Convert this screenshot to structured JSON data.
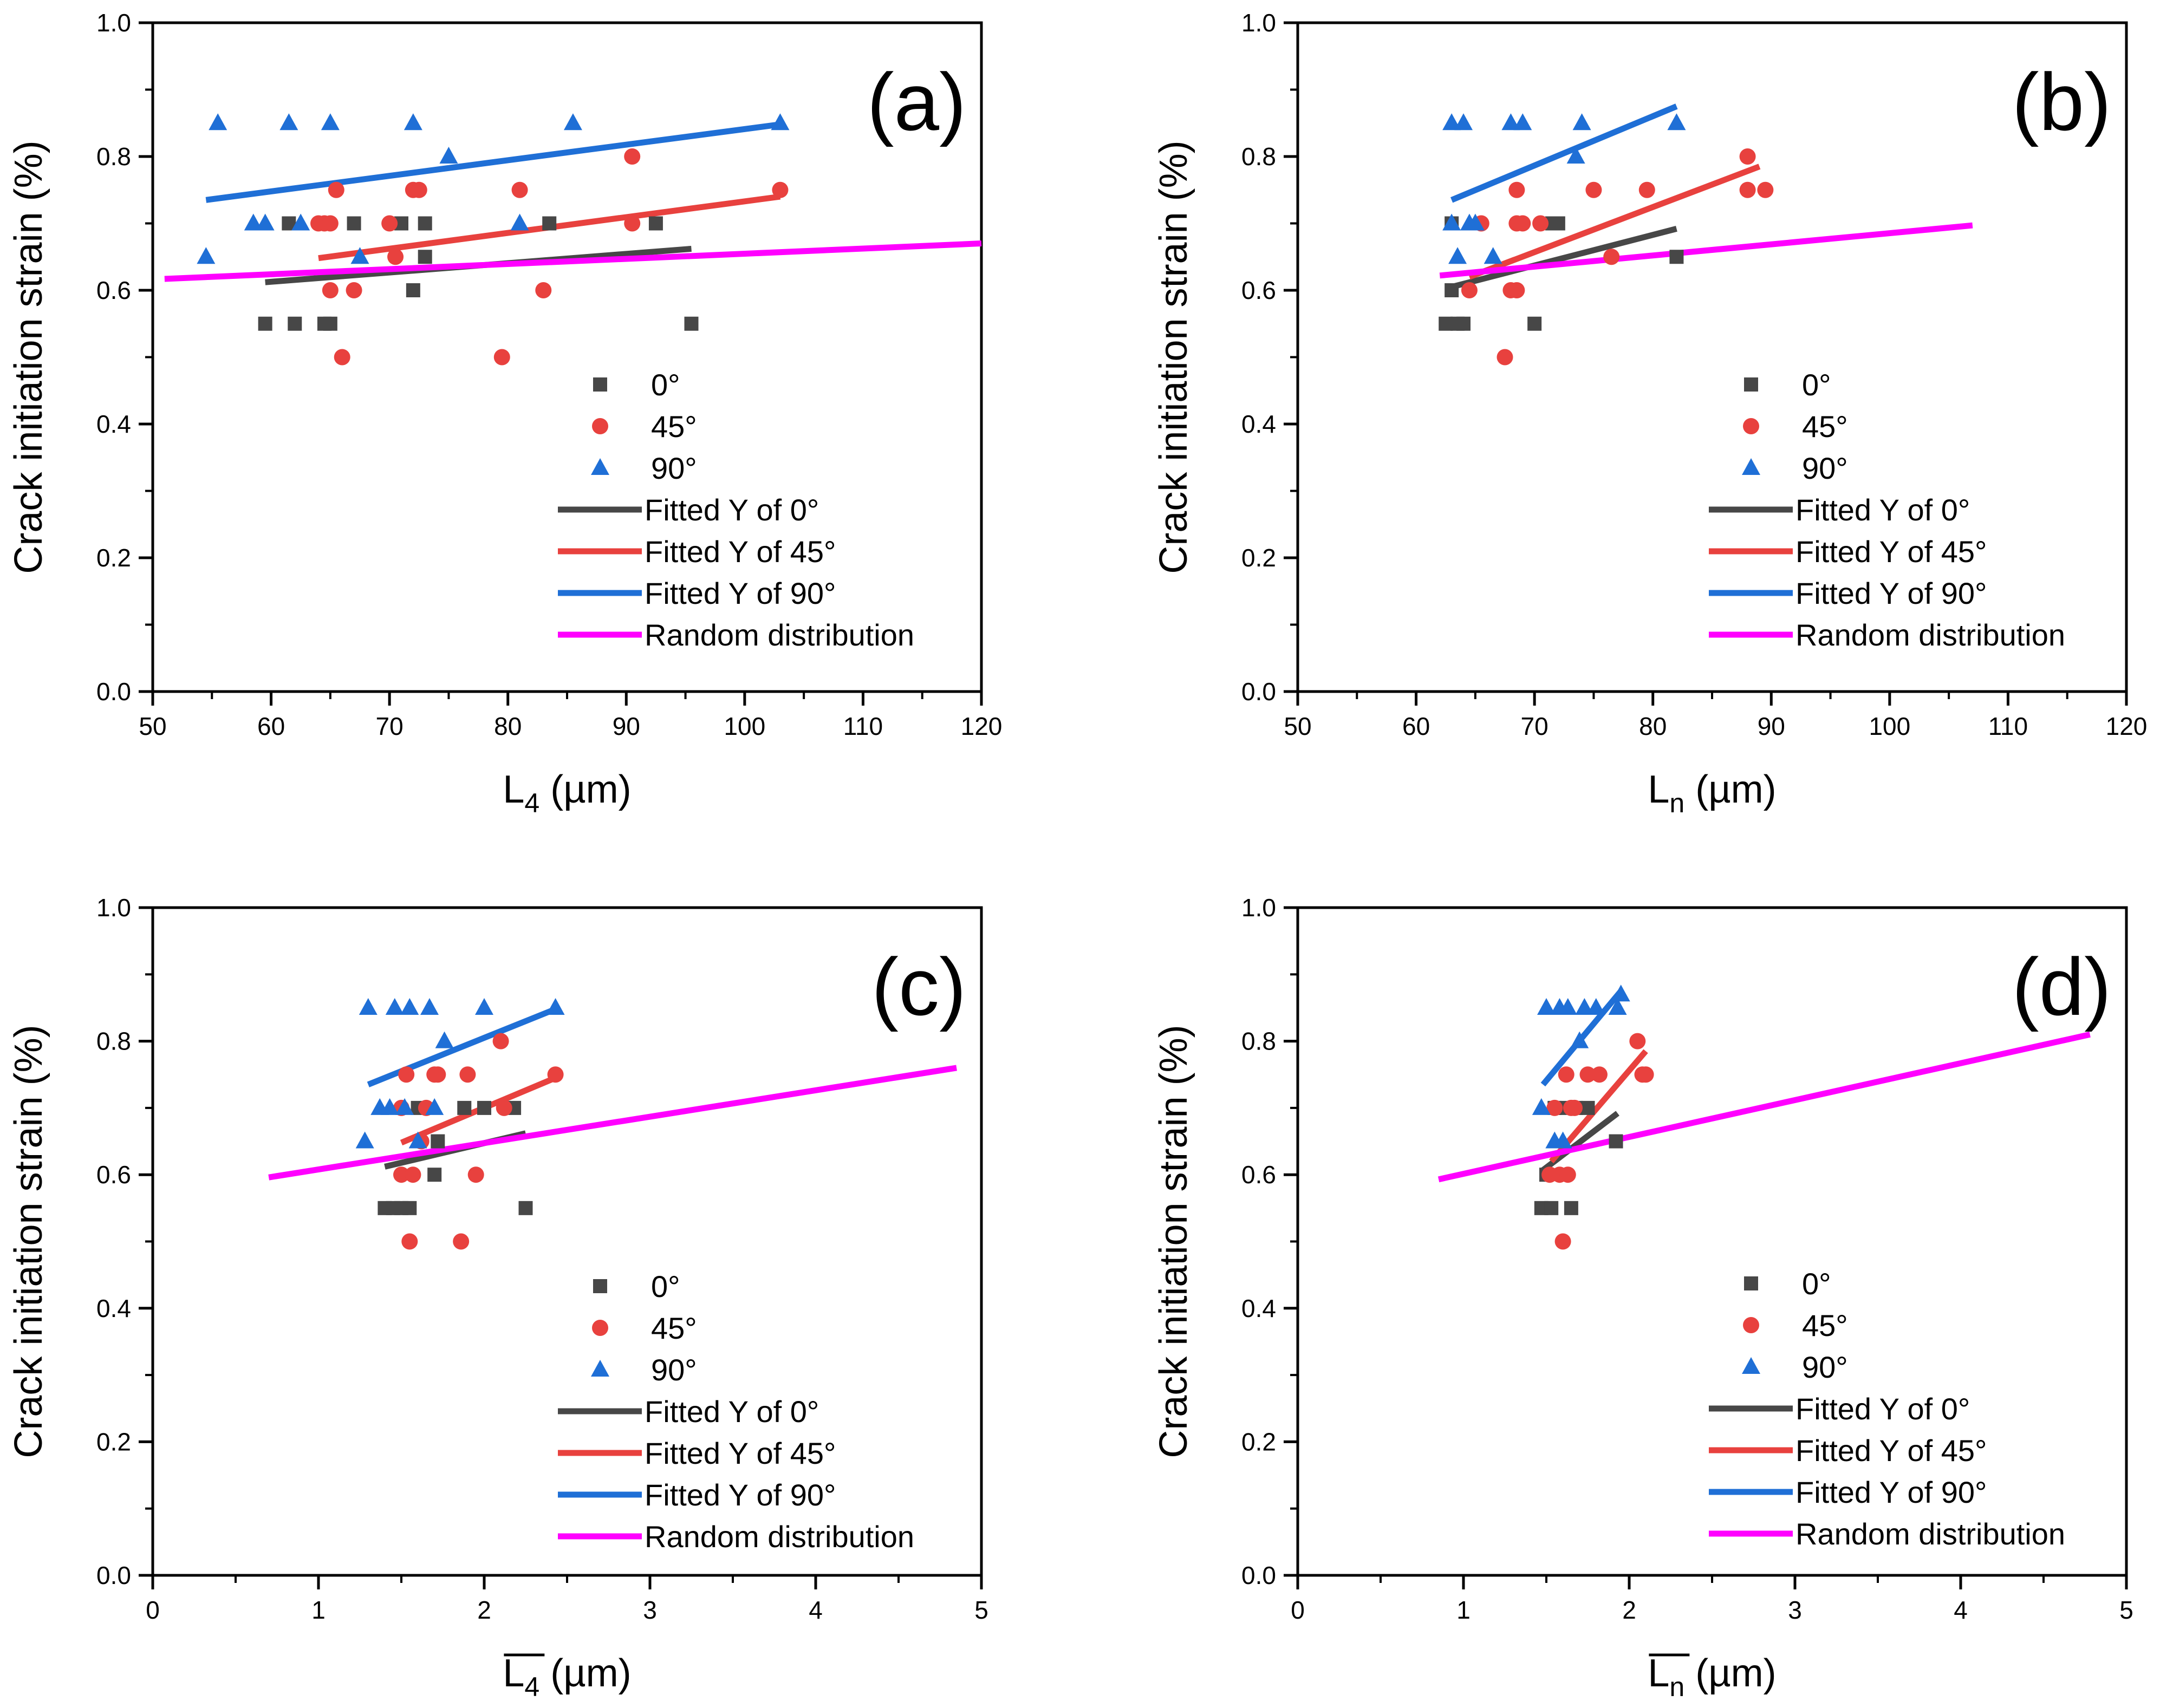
{
  "chart_data": [
    {
      "type": "scatter",
      "panel_label": "(a)",
      "ylabel": "Crack initiation strain (%)",
      "xlabel_main": "L",
      "xlabel_sub": "4",
      "xlabel_unit": " (µm)",
      "xlabel_overline": false,
      "xlim": [
        50,
        120
      ],
      "ylim": [
        0.0,
        1.0
      ],
      "xticks": [
        50,
        60,
        70,
        80,
        90,
        100,
        110,
        120
      ],
      "xtick_labels": [
        "50",
        "60",
        "70",
        "80",
        "90",
        "100",
        "110",
        "120"
      ],
      "yticks": [
        0.0,
        0.2,
        0.4,
        0.6,
        0.8,
        1.0
      ],
      "ytick_labels": [
        "0.0",
        "0.2",
        "0.4",
        "0.6",
        "0.8",
        "1.0"
      ],
      "legend": [
        "0°",
        "45°",
        "90°",
        "Fitted Y of 0°",
        "Fitted Y of 45°",
        "Fitted Y of 90°",
        "Random distribution"
      ],
      "series": [
        {
          "name": "0°",
          "marker": "square",
          "color": "#474747",
          "x": [
            59.5,
            61.5,
            62,
            64.5,
            65,
            67,
            71,
            72,
            73,
            73,
            83.5,
            92.5,
            95.5
          ],
          "y": [
            0.55,
            0.7,
            0.55,
            0.55,
            0.55,
            0.7,
            0.7,
            0.6,
            0.65,
            0.7,
            0.7,
            0.7,
            0.55
          ]
        },
        {
          "name": "45°",
          "marker": "circle",
          "color": "#e8413e",
          "x": [
            64,
            64.5,
            65,
            65,
            65.5,
            66,
            67,
            70,
            70.5,
            72,
            72.5,
            79.5,
            81,
            83,
            90.5,
            90.5,
            103
          ],
          "y": [
            0.7,
            0.7,
            0.7,
            0.6,
            0.75,
            0.5,
            0.6,
            0.7,
            0.65,
            0.75,
            0.75,
            0.5,
            0.75,
            0.6,
            0.8,
            0.7,
            0.75
          ]
        },
        {
          "name": "90°",
          "marker": "triangle",
          "color": "#1f6fd6",
          "x": [
            54.5,
            55.5,
            58.5,
            59.5,
            61.5,
            62.5,
            65,
            67.5,
            72,
            75,
            81,
            85.5,
            103
          ],
          "y": [
            0.65,
            0.85,
            0.7,
            0.7,
            0.85,
            0.7,
            0.85,
            0.65,
            0.85,
            0.8,
            0.7,
            0.85,
            0.85
          ]
        }
      ],
      "fits": [
        {
          "name": "Fitted Y of 0°",
          "color": "#474747",
          "x": [
            59.5,
            95.5
          ],
          "y": [
            0.612,
            0.662
          ]
        },
        {
          "name": "Fitted Y of 45°",
          "color": "#e8413e",
          "x": [
            64,
            103
          ],
          "y": [
            0.648,
            0.74
          ]
        },
        {
          "name": "Fitted Y of 90°",
          "color": "#1f6fd6",
          "x": [
            54.5,
            103
          ],
          "y": [
            0.735,
            0.848
          ]
        },
        {
          "name": "Random distribution",
          "color": "#ff00ff",
          "x": [
            51,
            120
          ],
          "y": [
            0.617,
            0.67
          ]
        }
      ]
    },
    {
      "type": "scatter",
      "panel_label": "(b)",
      "ylabel": "Crack initiation strain (%)",
      "xlabel_main": "L",
      "xlabel_sub": "n",
      "xlabel_unit": " (µm)",
      "xlabel_overline": false,
      "xlim": [
        50,
        120
      ],
      "ylim": [
        0.0,
        1.0
      ],
      "xticks": [
        50,
        60,
        70,
        80,
        90,
        100,
        110,
        120
      ],
      "xtick_labels": [
        "50",
        "60",
        "70",
        "80",
        "90",
        "100",
        "110",
        "120"
      ],
      "yticks": [
        0.0,
        0.2,
        0.4,
        0.6,
        0.8,
        1.0
      ],
      "ytick_labels": [
        "0.0",
        "0.2",
        "0.4",
        "0.6",
        "0.8",
        "1.0"
      ],
      "legend": [
        "0°",
        "45°",
        "90°",
        "Fitted Y of 0°",
        "Fitted Y of 45°",
        "Fitted Y of 90°",
        "Random distribution"
      ],
      "series": [
        {
          "name": "0°",
          "marker": "square",
          "color": "#474747",
          "x": [
            62.5,
            63,
            63,
            63.5,
            64,
            70,
            71.5,
            72,
            82
          ],
          "y": [
            0.55,
            0.6,
            0.7,
            0.55,
            0.55,
            0.55,
            0.7,
            0.7,
            0.65
          ]
        },
        {
          "name": "45°",
          "marker": "circle",
          "color": "#e8413e",
          "x": [
            64.5,
            65.5,
            67.5,
            68,
            68.5,
            68.5,
            68.5,
            69,
            70.5,
            75,
            76.5,
            79.5,
            88,
            88,
            89.5
          ],
          "y": [
            0.6,
            0.7,
            0.5,
            0.6,
            0.75,
            0.7,
            0.6,
            0.7,
            0.7,
            0.75,
            0.65,
            0.75,
            0.8,
            0.75,
            0.75
          ]
        },
        {
          "name": "90°",
          "marker": "triangle",
          "color": "#1f6fd6",
          "x": [
            63,
            63,
            63.5,
            64,
            64.5,
            65,
            66.5,
            68,
            69,
            73.5,
            74,
            82
          ],
          "y": [
            0.7,
            0.85,
            0.65,
            0.85,
            0.7,
            0.7,
            0.65,
            0.85,
            0.85,
            0.8,
            0.85,
            0.85
          ]
        }
      ],
      "fits": [
        {
          "name": "Fitted Y of 0°",
          "color": "#474747",
          "x": [
            63,
            82
          ],
          "y": [
            0.605,
            0.692
          ]
        },
        {
          "name": "Fitted Y of 45°",
          "color": "#e8413e",
          "x": [
            64.5,
            89
          ],
          "y": [
            0.62,
            0.785
          ]
        },
        {
          "name": "Fitted Y of 90°",
          "color": "#1f6fd6",
          "x": [
            63,
            82
          ],
          "y": [
            0.735,
            0.875
          ]
        },
        {
          "name": "Random distribution",
          "color": "#ff00ff",
          "x": [
            62,
            107
          ],
          "y": [
            0.622,
            0.697
          ]
        }
      ]
    },
    {
      "type": "scatter",
      "panel_label": "(c)",
      "ylabel": "Crack initiation strain (%)",
      "xlabel_main": "L",
      "xlabel_sub": "4",
      "xlabel_unit": " (µm)",
      "xlabel_overline": true,
      "xlim": [
        0,
        5
      ],
      "ylim": [
        0.0,
        1.0
      ],
      "xticks": [
        0,
        1,
        2,
        3,
        4,
        5
      ],
      "xtick_labels": [
        "0",
        "1",
        "2",
        "3",
        "4",
        "5"
      ],
      "yticks": [
        0.0,
        0.2,
        0.4,
        0.6,
        0.8,
        1.0
      ],
      "ytick_labels": [
        "0.0",
        "0.2",
        "0.4",
        "0.6",
        "0.8",
        "1.0"
      ],
      "legend": [
        "0°",
        "45°",
        "90°",
        "Fitted Y of 0°",
        "Fitted Y of 45°",
        "Fitted Y of 90°",
        "Random distribution"
      ],
      "series": [
        {
          "name": "0°",
          "marker": "square",
          "color": "#474747",
          "x": [
            1.4,
            1.45,
            1.5,
            1.55,
            1.6,
            1.7,
            1.72,
            1.88,
            2.0,
            2.18,
            2.25
          ],
          "y": [
            0.55,
            0.55,
            0.55,
            0.55,
            0.7,
            0.6,
            0.65,
            0.7,
            0.7,
            0.7,
            0.55
          ]
        },
        {
          "name": "45°",
          "marker": "circle",
          "color": "#e8413e",
          "x": [
            1.5,
            1.5,
            1.53,
            1.55,
            1.57,
            1.62,
            1.65,
            1.7,
            1.72,
            1.86,
            1.9,
            1.95,
            2.1,
            2.12,
            2.43
          ],
          "y": [
            0.7,
            0.6,
            0.75,
            0.5,
            0.6,
            0.65,
            0.7,
            0.75,
            0.75,
            0.5,
            0.75,
            0.6,
            0.8,
            0.7,
            0.75
          ]
        },
        {
          "name": "90°",
          "marker": "triangle",
          "color": "#1f6fd6",
          "x": [
            1.28,
            1.3,
            1.37,
            1.43,
            1.46,
            1.52,
            1.55,
            1.6,
            1.67,
            1.7,
            1.76,
            2.0,
            2.43
          ],
          "y": [
            0.65,
            0.85,
            0.7,
            0.7,
            0.85,
            0.7,
            0.85,
            0.65,
            0.85,
            0.7,
            0.8,
            0.85,
            0.85
          ]
        }
      ],
      "fits": [
        {
          "name": "Fitted Y of 0°",
          "color": "#474747",
          "x": [
            1.4,
            2.25
          ],
          "y": [
            0.612,
            0.662
          ]
        },
        {
          "name": "Fitted Y of 45°",
          "color": "#e8413e",
          "x": [
            1.5,
            2.43
          ],
          "y": [
            0.648,
            0.745
          ]
        },
        {
          "name": "Fitted Y of 90°",
          "color": "#1f6fd6",
          "x": [
            1.3,
            2.43
          ],
          "y": [
            0.735,
            0.848
          ]
        },
        {
          "name": "Random distribution",
          "color": "#ff00ff",
          "x": [
            0.7,
            4.85
          ],
          "y": [
            0.596,
            0.76
          ]
        }
      ]
    },
    {
      "type": "scatter",
      "panel_label": "(d)",
      "ylabel": "Crack initiation strain (%)",
      "xlabel_main": "L",
      "xlabel_sub": "n",
      "xlabel_unit": " (µm)",
      "xlabel_overline": true,
      "xlim": [
        0,
        5
      ],
      "ylim": [
        0.0,
        1.0
      ],
      "xticks": [
        0,
        1,
        2,
        3,
        4,
        5
      ],
      "xtick_labels": [
        "0",
        "1",
        "2",
        "3",
        "4",
        "5"
      ],
      "yticks": [
        0.0,
        0.2,
        0.4,
        0.6,
        0.8,
        1.0
      ],
      "ytick_labels": [
        "0.0",
        "0.2",
        "0.4",
        "0.6",
        "0.8",
        "1.0"
      ],
      "legend": [
        "0°",
        "45°",
        "90°",
        "Fitted Y of 0°",
        "Fitted Y of 45°",
        "Fitted Y of 90°",
        "Random distribution"
      ],
      "series": [
        {
          "name": "0°",
          "marker": "square",
          "color": "#474747",
          "x": [
            1.47,
            1.5,
            1.53,
            1.55,
            1.6,
            1.65,
            1.68,
            1.75,
            1.92
          ],
          "y": [
            0.55,
            0.6,
            0.55,
            0.7,
            0.7,
            0.55,
            0.7,
            0.7,
            0.65
          ]
        },
        {
          "name": "45°",
          "marker": "circle",
          "color": "#e8413e",
          "x": [
            1.52,
            1.55,
            1.58,
            1.6,
            1.62,
            1.63,
            1.65,
            1.67,
            1.75,
            1.82,
            2.05,
            2.08,
            2.1
          ],
          "y": [
            0.6,
            0.7,
            0.6,
            0.5,
            0.75,
            0.6,
            0.7,
            0.7,
            0.75,
            0.75,
            0.8,
            0.75,
            0.75
          ]
        },
        {
          "name": "90°",
          "marker": "triangle",
          "color": "#1f6fd6",
          "x": [
            1.47,
            1.5,
            1.55,
            1.58,
            1.6,
            1.63,
            1.7,
            1.73,
            1.8,
            1.93,
            1.95
          ],
          "y": [
            0.7,
            0.85,
            0.65,
            0.85,
            0.65,
            0.85,
            0.8,
            0.85,
            0.85,
            0.85,
            0.87
          ]
        }
      ],
      "fits": [
        {
          "name": "Fitted Y of 0°",
          "color": "#474747",
          "x": [
            1.48,
            1.93
          ],
          "y": [
            0.607,
            0.692
          ]
        },
        {
          "name": "Fitted Y of 45°",
          "color": "#e8413e",
          "x": [
            1.53,
            2.1
          ],
          "y": [
            0.62,
            0.785
          ]
        },
        {
          "name": "Fitted Y of 90°",
          "color": "#1f6fd6",
          "x": [
            1.48,
            1.95
          ],
          "y": [
            0.735,
            0.875
          ]
        },
        {
          "name": "Random distribution",
          "color": "#ff00ff",
          "x": [
            0.85,
            4.78
          ],
          "y": [
            0.593,
            0.81
          ]
        }
      ]
    }
  ]
}
